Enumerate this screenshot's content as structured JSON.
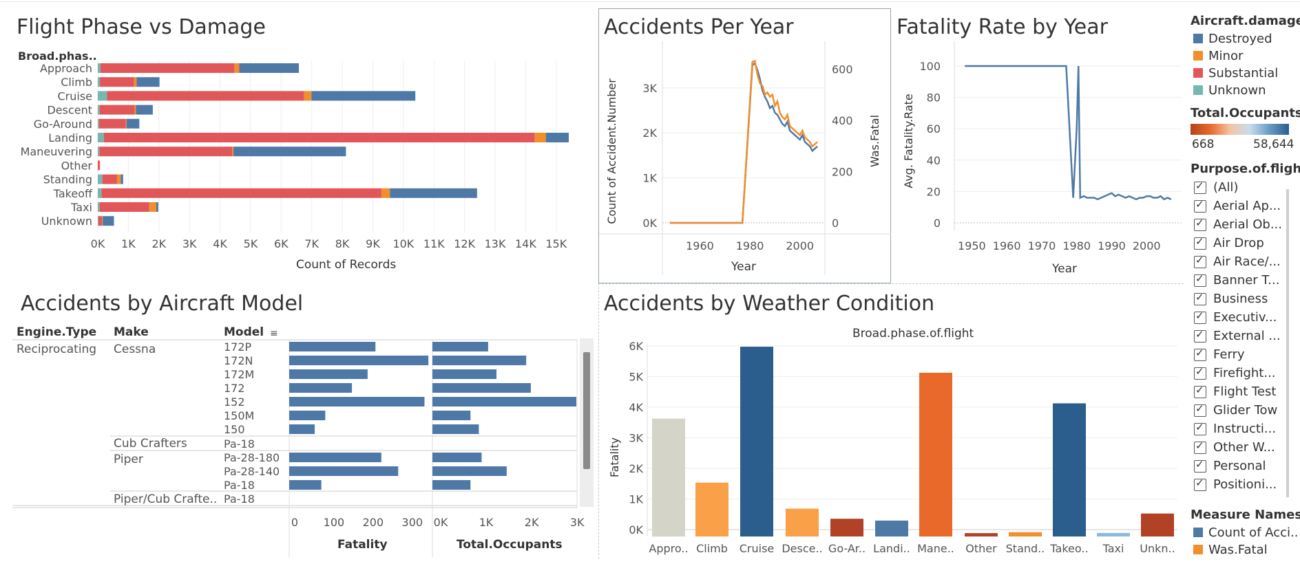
{
  "dashboard": {
    "phase_damage": {
      "title": "Flight Phase vs Damage",
      "row_header": "Broad.phas..",
      "xlabel": "Count of Records",
      "ticks": [
        "0K",
        "1K",
        "2K",
        "3K",
        "4K",
        "5K",
        "6K",
        "7K",
        "8K",
        "9K",
        "10K",
        "11K",
        "12K",
        "13K",
        "14K",
        "15K"
      ]
    },
    "accidents_year": {
      "title": "Accidents Per Year",
      "ylabel": "Count of Accident.Number",
      "y2label": "Was.Fatal",
      "xlabel": "Year",
      "yticks": [
        "0K",
        "1K",
        "2K",
        "3K"
      ],
      "y2ticks": [
        "0",
        "200",
        "400",
        "600"
      ],
      "xticks": [
        "1960",
        "1980",
        "2000"
      ]
    },
    "fatality_rate": {
      "title": "Fatality Rate by Year",
      "ylabel": "Avg. Fatality.Rate",
      "xlabel": "Year",
      "yticks": [
        "0",
        "20",
        "40",
        "60",
        "80",
        "100"
      ],
      "xticks": [
        "1950",
        "1960",
        "1970",
        "1980",
        "1990",
        "2000"
      ]
    },
    "aircraft_model": {
      "title": "Accidents by Aircraft Model",
      "col_engine": "Engine.Type",
      "col_make": "Make",
      "col_model": "Model",
      "engine_value": "Reciprocating",
      "makes": [
        "Cessna",
        "Cub Crafters",
        "Piper",
        "Piper/Cub Crafte.."
      ],
      "fatality_label": "Fatality",
      "occupants_label": "Total.Occupants",
      "fatality_ticks": [
        "0",
        "100",
        "200",
        "300"
      ],
      "occupants_ticks": [
        "0K",
        "1K",
        "2K",
        "3K"
      ]
    },
    "weather": {
      "title": "Accidents by Weather Condition",
      "header": "Broad.phase.of.flight",
      "ylabel": "Fatality",
      "yticks": [
        "0K",
        "1K",
        "2K",
        "3K",
        "4K",
        "5K",
        "6K"
      ]
    },
    "legend": {
      "damage_title": "Aircraft.damage",
      "damage_items": [
        {
          "label": "Destroyed",
          "color": "#4e79a7"
        },
        {
          "label": "Minor",
          "color": "#f28e2b"
        },
        {
          "label": "Substantial",
          "color": "#e15759"
        },
        {
          "label": "Unknown",
          "color": "#76b7b2"
        }
      ],
      "occupants_title": "Total.Occupants",
      "occupants_min": "668",
      "occupants_max": "58,644",
      "purpose_title": "Purpose.of.flight",
      "purpose_items": [
        "(All)",
        "Aerial Ap...",
        "Aerial Ob...",
        "Air Drop",
        "Air Race/...",
        "Banner T...",
        "Business",
        "Executiv...",
        "External ...",
        "Ferry",
        "Firefight...",
        "Flight Test",
        "Glider Tow",
        "Instructi...",
        "Other W...",
        "Personal",
        "Positioni..."
      ],
      "measure_title": "Measure Names",
      "measure_items": [
        {
          "label": "Count of Acci..",
          "color": "#4e79a7"
        },
        {
          "label": "Was.Fatal",
          "color": "#f28e2b"
        }
      ]
    }
  },
  "chart_data": [
    {
      "type": "bar",
      "title": "Flight Phase vs Damage",
      "xlabel": "Count of Records",
      "orientation": "horizontal",
      "stacked": true,
      "xlim": [
        0,
        15500
      ],
      "categories": [
        "Approach",
        "Climb",
        "Cruise",
        "Descent",
        "Go-Around",
        "Landing",
        "Maneuvering",
        "Other",
        "Standing",
        "Takeoff",
        "Taxi",
        "Unknown"
      ],
      "series": [
        {
          "name": "Unknown",
          "color": "#76b7b2",
          "values": [
            90,
            70,
            300,
            60,
            40,
            200,
            50,
            0,
            150,
            120,
            60,
            20
          ]
        },
        {
          "name": "Substantial",
          "color": "#e15759",
          "values": [
            4380,
            1120,
            6450,
            1150,
            880,
            14100,
            4350,
            70,
            480,
            9160,
            1620,
            120
          ]
        },
        {
          "name": "Minor",
          "color": "#f28e2b",
          "values": [
            160,
            80,
            240,
            40,
            20,
            360,
            40,
            0,
            120,
            280,
            230,
            20
          ]
        },
        {
          "name": "Destroyed",
          "color": "#4e79a7",
          "values": [
            1950,
            750,
            3400,
            550,
            420,
            750,
            3680,
            0,
            80,
            2850,
            70,
            370
          ]
        }
      ]
    },
    {
      "type": "line",
      "title": "Accidents Per Year",
      "xlabel": "Year",
      "ylabel": "Count of Accident.Number",
      "y2label": "Was.Fatal",
      "ylim": [
        0,
        3700
      ],
      "y2lim": [
        0,
        650
      ],
      "x": [
        1948,
        1962,
        1977,
        1981,
        1982,
        1983,
        1984,
        1985,
        1986,
        1987,
        1988,
        1989,
        1990,
        1991,
        1992,
        1993,
        1994,
        1995,
        1996,
        1997,
        1998,
        1999,
        2000,
        2001,
        2002,
        2003,
        2004,
        2005,
        2006,
        2007
      ],
      "series": [
        {
          "name": "Count of Acci..",
          "axis": "left",
          "color": "#4e79a7",
          "values": [
            0,
            0,
            0,
            3500,
            3550,
            3400,
            3200,
            2950,
            2800,
            2700,
            2550,
            2600,
            2450,
            2400,
            2300,
            2200,
            2150,
            2250,
            2050,
            2000,
            1950,
            1900,
            1850,
            1950,
            1800,
            1750,
            1700,
            1600,
            1650,
            1700
          ]
        },
        {
          "name": "Was.Fatal",
          "axis": "left",
          "color": "#f28e2b",
          "values": [
            0,
            0,
            0,
            3580,
            3600,
            3300,
            3100,
            3050,
            2850,
            2900,
            2800,
            2850,
            2600,
            2700,
            2450,
            2350,
            2300,
            2400,
            2150,
            2100,
            2050,
            2000,
            1950,
            2050,
            1900,
            1850,
            1800,
            1700,
            1750,
            1800
          ]
        }
      ]
    },
    {
      "type": "line",
      "title": "Fatality Rate by Year",
      "xlabel": "Year",
      "ylabel": "Avg. Fatality.Rate",
      "ylim": [
        0,
        105
      ],
      "x": [
        1948,
        1960,
        1970,
        1977,
        1979,
        1980,
        1980.5,
        1981,
        1982,
        1983,
        1984,
        1985,
        1986,
        1987,
        1988,
        1989,
        1990,
        1991,
        1992,
        1993,
        1994,
        1995,
        1996,
        1997,
        1998,
        1999,
        2000,
        2001,
        2002,
        2003,
        2004,
        2005,
        2006,
        2007
      ],
      "series": [
        {
          "name": "Avg. Fatality.Rate",
          "color": "#4e79a7",
          "values": [
            100,
            100,
            100,
            100,
            16,
            60,
            100,
            16,
            17,
            16,
            16,
            16,
            15,
            16,
            17,
            18,
            19,
            17,
            18,
            17,
            16,
            17,
            16,
            15,
            16,
            16,
            17,
            17,
            16,
            16,
            17,
            15,
            16,
            15
          ]
        }
      ]
    },
    {
      "type": "bar",
      "title": "Accidents by Aircraft Model",
      "orientation": "horizontal",
      "categories": [
        "172P",
        "172N",
        "172M",
        "172",
        "152",
        "150M",
        "150",
        "Pa-18",
        "Pa-28-180",
        "Pa-28-140",
        "Pa-18",
        "Pa-18"
      ],
      "makes": [
        "Cessna",
        "Cessna",
        "Cessna",
        "Cessna",
        "Cessna",
        "Cessna",
        "Cessna",
        "Cub Crafters",
        "Piper",
        "Piper",
        "Piper",
        "Piper/Cub Crafte.."
      ],
      "series": [
        {
          "name": "Fatality",
          "xlim": [
            0,
            360
          ],
          "values": [
            220,
            355,
            200,
            160,
            345,
            92,
            65,
            0,
            235,
            278,
            82,
            0
          ]
        },
        {
          "name": "Total.Occupants",
          "xlim": [
            0,
            3100
          ],
          "values": [
            1200,
            2020,
            1380,
            2120,
            3100,
            820,
            1000,
            0,
            1060,
            1600,
            820,
            0
          ]
        }
      ]
    },
    {
      "type": "bar",
      "title": "Accidents by Weather Condition",
      "ylabel": "Fatality",
      "ylim": [
        0,
        6500
      ],
      "categories": [
        "Appro..",
        "Climb",
        "Cruise",
        "Desce..",
        "Go-Ar..",
        "Landi..",
        "Mane..",
        "Other",
        "Stand..",
        "Takeo..",
        "Taxi",
        "Unkn.."
      ],
      "values": [
        3850,
        1760,
        6200,
        910,
        580,
        520,
        5350,
        110,
        140,
        4350,
        115,
        750
      ],
      "colors": [
        "#d4d4c8",
        "#f9a049",
        "#2b5d8d",
        "#f9a049",
        "#b14226",
        "#4e79a7",
        "#e8692a",
        "#b14226",
        "#f28e2b",
        "#2b5d8d",
        "#8fb8dd",
        "#b14226"
      ]
    }
  ]
}
